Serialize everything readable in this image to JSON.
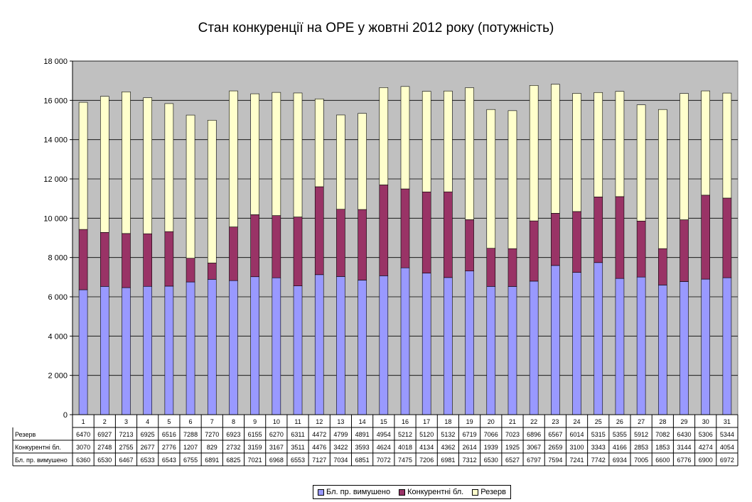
{
  "chart_data": {
    "type": "bar",
    "stacked": true,
    "title": "Стан конкуренції на ОРЕ  у жовтні 2012 року (потужність)",
    "categories": [
      "1",
      "2",
      "3",
      "4",
      "5",
      "6",
      "7",
      "8",
      "9",
      "10",
      "11",
      "12",
      "13",
      "14",
      "15",
      "16",
      "17",
      "18",
      "19",
      "20",
      "21",
      "22",
      "23",
      "24",
      "25",
      "26",
      "27",
      "28",
      "29",
      "30",
      "31"
    ],
    "ylim": [
      0,
      18000
    ],
    "y_ticks": [
      "0",
      "2 000",
      "4 000",
      "6 000",
      "8 000",
      "10 000",
      "12 000",
      "14 000",
      "16 000",
      "18 000"
    ],
    "grid": true,
    "legend_position": "bottom",
    "data_table": true,
    "series": [
      {
        "name": "Бл. пр. вимушено",
        "color": "#9999ff",
        "values": [
          6360,
          6530,
          6467,
          6533,
          6543,
          6755,
          6891,
          6825,
          7021,
          6968,
          6553,
          7127,
          7034,
          6851,
          7072,
          7475,
          7206,
          6981,
          7312,
          6530,
          6527,
          6797,
          7594,
          7241,
          7742,
          6934,
          7005,
          6600,
          6776,
          6900,
          6972
        ]
      },
      {
        "name": "Конкурентні бл.",
        "color": "#993366",
        "values": [
          3070,
          2748,
          2755,
          2677,
          2776,
          1207,
          829,
          2732,
          3159,
          3167,
          3511,
          4476,
          3422,
          3593,
          4624,
          4018,
          4134,
          4362,
          2614,
          1939,
          1925,
          3067,
          2659,
          3100,
          3343,
          4166,
          2853,
          1853,
          3144,
          4274,
          4054
        ]
      },
      {
        "name": "Резерв",
        "color": "#ffffcc",
        "values": [
          6470,
          6927,
          7213,
          6925,
          6516,
          7288,
          7270,
          6923,
          6155,
          6270,
          6311,
          4472,
          4799,
          4891,
          4954,
          5212,
          5120,
          5132,
          6719,
          7066,
          7023,
          6896,
          6567,
          6014,
          5315,
          5355,
          5912,
          7082,
          6430,
          5306,
          5344
        ]
      }
    ],
    "table_row_order": [
      2,
      1,
      0
    ],
    "plot_background": "#c0c0c0"
  }
}
